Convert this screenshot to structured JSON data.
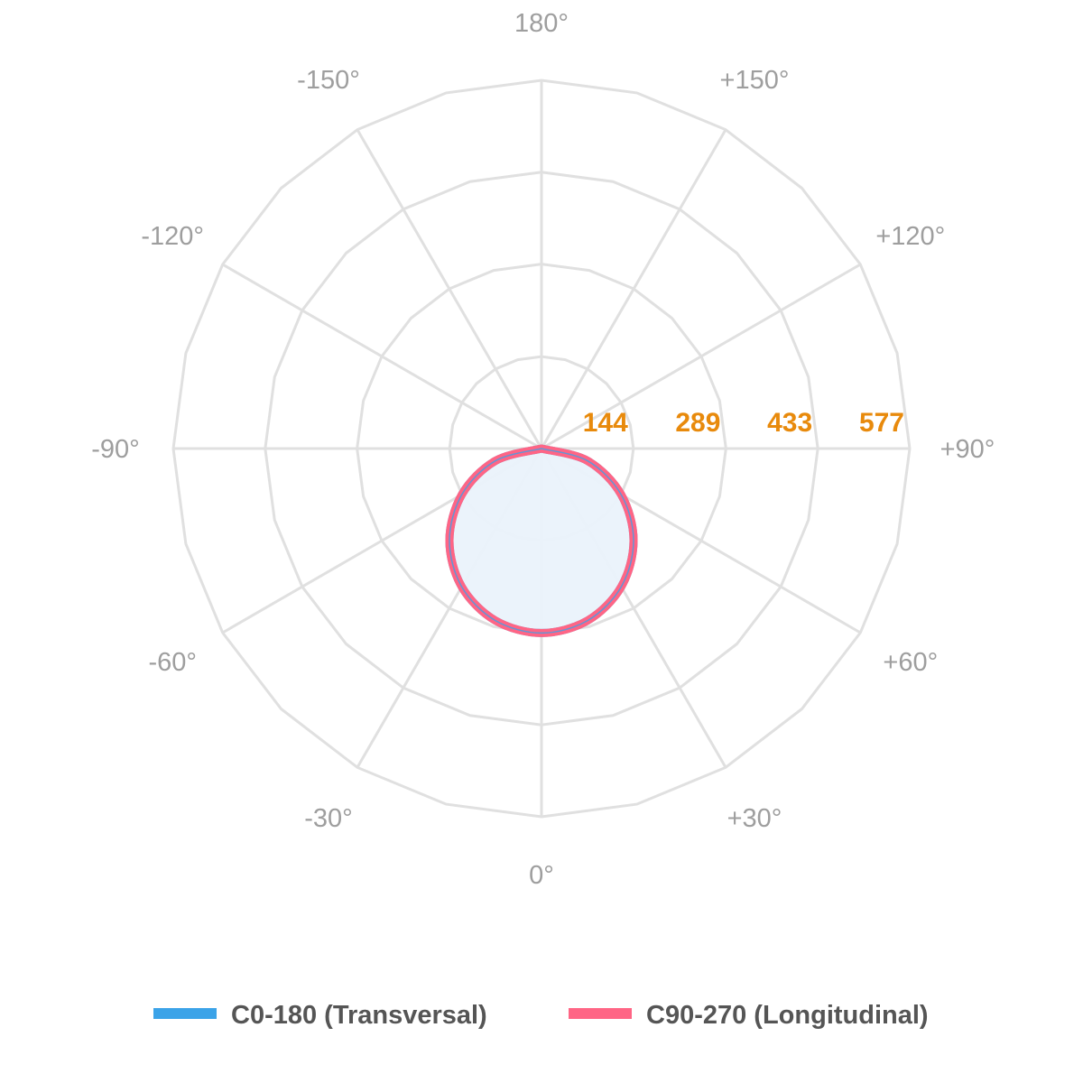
{
  "chart_data": {
    "type": "polar",
    "angle_labels": [
      "0°",
      "+30°",
      "+60°",
      "+90°",
      "+120°",
      "+150°",
      "180°",
      "-150°",
      "-120°",
      "-90°",
      "-60°",
      "-30°"
    ],
    "angles": [
      0,
      30,
      60,
      90,
      120,
      150,
      180,
      -150,
      -120,
      -90,
      -60,
      -30
    ],
    "ring_labels": [
      "144",
      "289",
      "433",
      "577"
    ],
    "ring_values": [
      144,
      289,
      433,
      577
    ],
    "r_max": 577,
    "grid": true,
    "legend_position": "bottom",
    "series": [
      {
        "name": "C0-180 (Transversal)",
        "color": "#3ba3e8",
        "fill": "#eaf2fb",
        "angles": [
          -90,
          -75,
          -60,
          -45,
          -30,
          -15,
          0,
          15,
          30,
          45,
          60,
          75,
          90
        ],
        "values": [
          0,
          75,
          144,
          204,
          250,
          279,
          289,
          279,
          250,
          204,
          144,
          75,
          0
        ]
      },
      {
        "name": "C90-270 (Longitudinal)",
        "color": "#ff6585",
        "angles": [
          -90,
          -75,
          -60,
          -45,
          -30,
          -15,
          0,
          15,
          30,
          45,
          60,
          75,
          90
        ],
        "values": [
          0,
          75,
          144,
          204,
          250,
          279,
          289,
          279,
          250,
          204,
          144,
          75,
          0
        ]
      }
    ]
  }
}
